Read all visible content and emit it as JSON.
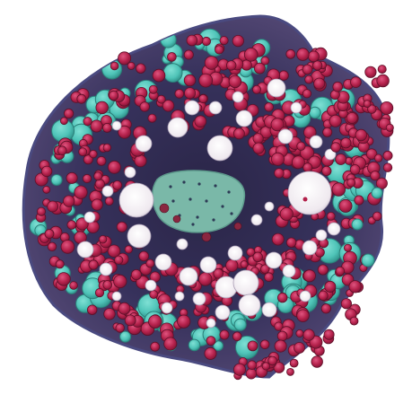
{
  "image": {
    "subject": "stained-tissue-cross-section",
    "colors": {
      "background": "#ffffff",
      "tissue_dark": "#2f2a4e",
      "tissue_mid": "#3c3762",
      "border": "#4a4a80",
      "red_cells": "#b3204a",
      "red_cells_light": "#d0406a",
      "teal_cells": "#4fc4b8",
      "teal_center": "#7ab8a8",
      "vacuoles": "#f2eef2"
    }
  }
}
